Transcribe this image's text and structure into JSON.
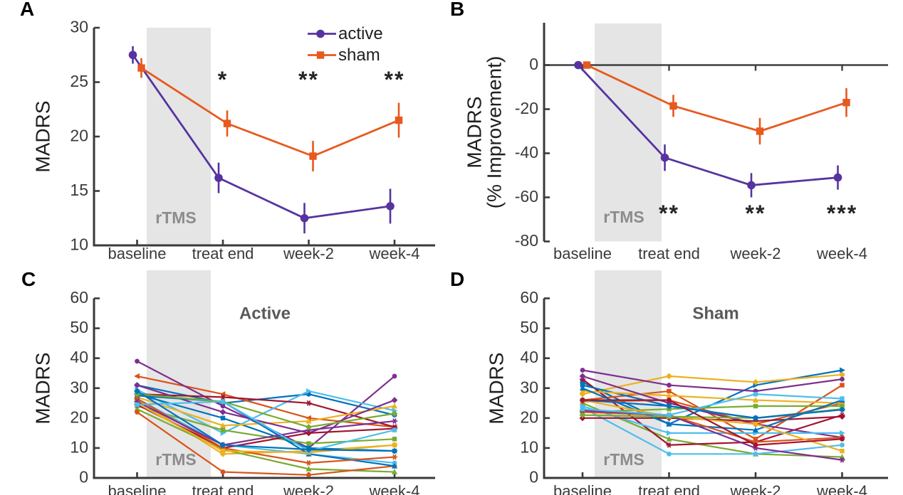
{
  "figure": {
    "background": "#ffffff",
    "colors": {
      "active": "#5733a0",
      "sham": "#e7591e",
      "band": "#e5e5e5",
      "axis": "#3a3a3a",
      "tick_label": "#3a3a3a",
      "label": "#1f1f1f",
      "annotation": "#262626",
      "muted_label": "#8c8c8c",
      "title": "#5a5a5a",
      "zero_line": "#3f3f3f"
    },
    "palette": [
      "#0072BD",
      "#D95319",
      "#EDB120",
      "#7E2F8E",
      "#77AC30",
      "#4DBEEE",
      "#A2142F"
    ],
    "band_label": "rTMS"
  },
  "categories": [
    "baseline",
    "treat end",
    "week-2",
    "week-4"
  ],
  "chart_data": [
    {
      "id": "A",
      "type": "line",
      "ylabel": [
        "MADRS"
      ],
      "ylim": [
        10,
        30
      ],
      "yticks": [
        10,
        15,
        20,
        25,
        30
      ],
      "categories": [
        "baseline",
        "treat end",
        "week-2",
        "week-4"
      ],
      "legend": true,
      "band_label": "rTMS",
      "series": [
        {
          "name": "active",
          "color_key": "active",
          "marker": "circle",
          "values": [
            27.5,
            16.2,
            12.5,
            13.6
          ],
          "err": [
            0.8,
            1.4,
            1.4,
            1.6
          ]
        },
        {
          "name": "sham",
          "color_key": "sham",
          "marker": "square",
          "values": [
            26.3,
            21.2,
            18.2,
            21.5
          ],
          "err": [
            0.9,
            1.2,
            1.4,
            1.6
          ]
        }
      ],
      "stars": [
        {
          "category": 1,
          "label": "*"
        },
        {
          "category": 2,
          "label": "**"
        },
        {
          "category": 3,
          "label": "**"
        }
      ]
    },
    {
      "id": "B",
      "type": "line",
      "ylabel": [
        "MADRS",
        "(% Improvement)"
      ],
      "ylim": [
        -80,
        0
      ],
      "yticks": [
        0,
        -20,
        -40,
        -60,
        -80
      ],
      "categories": [
        "baseline",
        "treat end",
        "week-2",
        "week-4"
      ],
      "zero_line": true,
      "band_label": "rTMS",
      "series": [
        {
          "name": "active",
          "color_key": "active",
          "marker": "circle",
          "values": [
            0,
            -42,
            -54.5,
            -51
          ],
          "err": [
            0,
            6,
            5.5,
            5.5
          ]
        },
        {
          "name": "sham",
          "color_key": "sham",
          "marker": "square",
          "values": [
            0,
            -18.5,
            -30,
            -17
          ],
          "err": [
            0,
            5,
            6,
            6.5
          ]
        }
      ],
      "stars": [
        {
          "category": 1,
          "label": "**"
        },
        {
          "category": 2,
          "label": "**"
        },
        {
          "category": 3,
          "label": "***"
        }
      ]
    },
    {
      "id": "C",
      "type": "line",
      "title": "Active",
      "ylabel": [
        "MADRS"
      ],
      "ylim": [
        0,
        60
      ],
      "yticks": [
        0,
        10,
        20,
        30,
        40,
        50,
        60
      ],
      "categories": [
        "baseline",
        "treat end",
        "week-2",
        "week-4"
      ],
      "band_label": "rTMS",
      "series": [
        {
          "ci": 0,
          "marker": "circle",
          "values": [
            31,
            25,
            28,
            21
          ]
        },
        {
          "ci": 1,
          "marker": "tri-left",
          "values": [
            34,
            28,
            20,
            17
          ]
        },
        {
          "ci": 2,
          "marker": "diamond",
          "values": [
            26,
            8,
            9,
            11
          ]
        },
        {
          "ci": 3,
          "marker": "circle",
          "values": [
            39,
            24,
            10,
            34
          ]
        },
        {
          "ci": 4,
          "marker": "tri-up",
          "values": [
            23,
            9.5,
            3,
            2
          ]
        },
        {
          "ci": 5,
          "marker": "tri-right",
          "values": [
            29.5,
            15,
            29,
            22.5
          ]
        },
        {
          "ci": 6,
          "marker": "star",
          "values": [
            28,
            27,
            25,
            17
          ]
        },
        {
          "ci": 0,
          "marker": "square",
          "values": [
            28,
            20,
            10,
            9
          ]
        },
        {
          "ci": 1,
          "marker": "circle",
          "values": [
            22,
            2,
            1,
            4
          ]
        },
        {
          "ci": 2,
          "marker": "tri-up",
          "values": [
            27,
            17.5,
            19,
            24
          ]
        },
        {
          "ci": 3,
          "marker": "diamond",
          "values": [
            31,
            22,
            15,
            26
          ]
        },
        {
          "ci": 4,
          "marker": "square",
          "values": [
            24,
            16,
            11.5,
            13
          ]
        },
        {
          "ci": 5,
          "marker": "circle",
          "values": [
            26.5,
            11,
            8,
            5
          ]
        },
        {
          "ci": 6,
          "marker": "diamond",
          "values": [
            24.5,
            10,
            15,
            16.5
          ]
        },
        {
          "ci": 0,
          "marker": "tri-up",
          "values": [
            27.5,
            25.5,
            8,
            4
          ]
        },
        {
          "ci": 1,
          "marker": "star",
          "values": [
            26.5,
            10,
            5,
            7
          ]
        },
        {
          "ci": 2,
          "marker": "square",
          "values": [
            25,
            9,
            8.5,
            11
          ]
        },
        {
          "ci": 3,
          "marker": "star",
          "values": [
            25.5,
            11,
            16,
            19
          ]
        },
        {
          "ci": 4,
          "marker": "diamond",
          "values": [
            28,
            25.5,
            17,
            21.5
          ]
        },
        {
          "ci": 5,
          "marker": "square",
          "values": [
            24.5,
            25.5,
            9,
            16
          ]
        },
        {
          "ci": 0,
          "marker": "diamond",
          "values": [
            29,
            11,
            9.5,
            9
          ]
        }
      ]
    },
    {
      "id": "D",
      "type": "line",
      "title": "Sham",
      "ylabel": [
        "MADRS"
      ],
      "ylim": [
        0,
        60
      ],
      "yticks": [
        0,
        10,
        20,
        30,
        40,
        50,
        60
      ],
      "categories": [
        "baseline",
        "treat end",
        "week-2",
        "week-4"
      ],
      "band_label": "rTMS",
      "series": [
        {
          "ci": 0,
          "marker": "tri-right",
          "values": [
            32,
            18,
            31,
            36
          ]
        },
        {
          "ci": 1,
          "marker": "square",
          "values": [
            26,
            29,
            13,
            31
          ]
        },
        {
          "ci": 2,
          "marker": "diamond",
          "values": [
            28,
            34,
            32,
            34.5
          ]
        },
        {
          "ci": 3,
          "marker": "circle",
          "values": [
            36,
            31,
            29,
            33
          ]
        },
        {
          "ci": 4,
          "marker": "tri-up",
          "values": [
            25,
            13,
            8,
            7
          ]
        },
        {
          "ci": 5,
          "marker": "circle",
          "values": [
            23.5,
            8,
            8,
            11
          ]
        },
        {
          "ci": 6,
          "marker": "star",
          "values": [
            33,
            11,
            12,
            21
          ]
        },
        {
          "ci": 0,
          "marker": "square",
          "values": [
            31,
            24,
            20,
            23
          ]
        },
        {
          "ci": 1,
          "marker": "circle",
          "values": [
            25.5,
            26,
            18,
            25
          ]
        },
        {
          "ci": 2,
          "marker": "tri-up",
          "values": [
            29,
            27.5,
            26,
            25
          ]
        },
        {
          "ci": 3,
          "marker": "diamond",
          "values": [
            34,
            25,
            18,
            13.5
          ]
        },
        {
          "ci": 4,
          "marker": "square",
          "values": [
            22,
            23,
            24,
            24
          ]
        },
        {
          "ci": 5,
          "marker": "tri-right",
          "values": [
            24,
            15,
            15,
            15
          ]
        },
        {
          "ci": 6,
          "marker": "diamond",
          "values": [
            20,
            20,
            19,
            20.5
          ]
        },
        {
          "ci": 0,
          "marker": "tri-up",
          "values": [
            30,
            18,
            16,
            26
          ]
        },
        {
          "ci": 1,
          "marker": "star",
          "values": [
            22,
            21,
            12,
            13.5
          ]
        },
        {
          "ci": 2,
          "marker": "square",
          "values": [
            26,
            20.5,
            18,
            9
          ]
        },
        {
          "ci": 3,
          "marker": "star",
          "values": [
            22.5,
            21,
            10,
            6
          ]
        },
        {
          "ci": 4,
          "marker": "diamond",
          "values": [
            21,
            20.5,
            20,
            23
          ]
        },
        {
          "ci": 5,
          "marker": "square",
          "values": [
            23,
            21,
            28,
            26.5
          ]
        },
        {
          "ci": 0,
          "marker": "diamond",
          "values": [
            26,
            24,
            20,
            22.8
          ]
        },
        {
          "ci": 6,
          "marker": "circle",
          "values": [
            26,
            26,
            11,
            13
          ]
        }
      ]
    }
  ]
}
